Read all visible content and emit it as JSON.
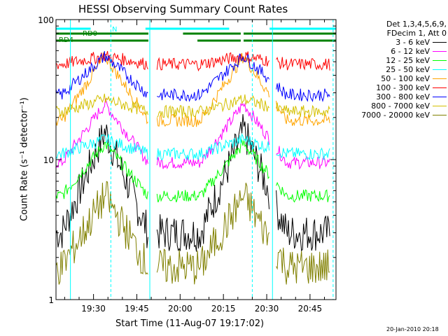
{
  "chart_data": {
    "type": "line",
    "title": "HESSI Observing Summary Count Rates",
    "xlabel": "Start Time (11-Aug-07 19:17:02)",
    "ylabel": "Count Rate (s⁻¹ detector⁻¹)",
    "yscale": "log",
    "ylim": [
      1,
      100
    ],
    "xlim_minutes_after_1917": [
      0,
      97
    ],
    "x_tick_labels": [
      "19:30",
      "19:45",
      "20:00",
      "20:15",
      "20:30",
      "20:45"
    ],
    "x_tick_minutes": [
      13,
      28,
      43,
      58,
      73,
      88
    ],
    "y_tick_labels": [
      "1",
      "10",
      "100"
    ],
    "y_tick_values": [
      1,
      10,
      100
    ],
    "legend_header": [
      "Det 1,3,4,5,6,9,",
      "FDecim 1, Att 0"
    ],
    "series": [
      {
        "name": "3 - 6 keV",
        "color": "#000000",
        "low": 3.0,
        "peak": 16
      },
      {
        "name": "6 - 12 keV",
        "color": "#ff00ff",
        "low": 9.5,
        "peak": 25
      },
      {
        "name": "12 - 25 keV",
        "color": "#00ff00",
        "low": 5.5,
        "peak": 13
      },
      {
        "name": "25 - 50 keV",
        "color": "#00ffff",
        "low": 11,
        "peak": 14
      },
      {
        "name": "50 - 100 keV",
        "color": "#ffa500",
        "low": 19,
        "peak": 55
      },
      {
        "name": "100 - 300 keV",
        "color": "#ff0000",
        "low": 48,
        "peak": 55
      },
      {
        "name": "300 - 800 keV",
        "color": "#0000ff",
        "low": 29,
        "peak": 55
      },
      {
        "name": "800 - 7000 keV",
        "color": "#d4c000",
        "low": 22,
        "peak": 27
      },
      {
        "name": "7000 - 20000 keV",
        "color": "#808000",
        "low": 1.7,
        "peak": 5.5
      }
    ],
    "annotations": [
      {
        "text": "N",
        "color": "#00ffff"
      },
      {
        "text": "RD0",
        "color": "#008000"
      },
      {
        "text": "RD4",
        "color": "#008000"
      }
    ],
    "footer_date": "20-Jan-2010 20:18"
  }
}
